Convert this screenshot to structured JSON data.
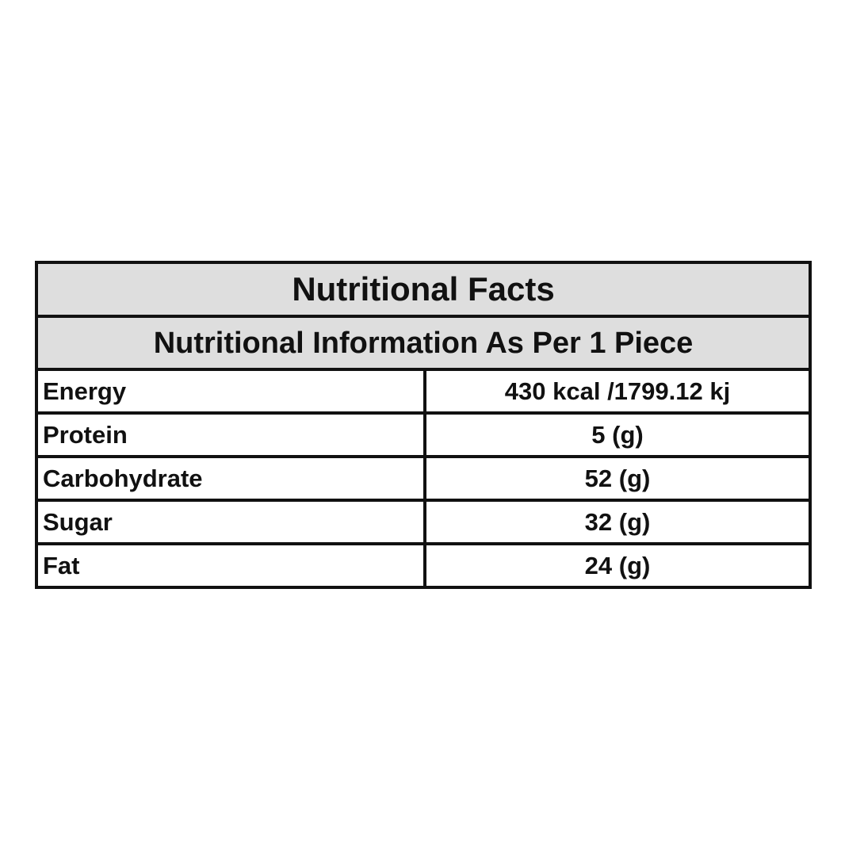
{
  "table": {
    "title": "Nutritional Facts",
    "subtitle": "Nutritional Information As Per 1 Piece",
    "rows": [
      {
        "label": "Energy",
        "value": "430 kcal /1799.12 kj"
      },
      {
        "label": "Protein",
        "value": "5 (g)"
      },
      {
        "label": "Carbohydrate",
        "value": "52 (g)"
      },
      {
        "label": "Sugar",
        "value": "32 (g)"
      },
      {
        "label": "Fat",
        "value": "24 (g)"
      }
    ]
  },
  "colors": {
    "header_background": "#dedede",
    "border": "#111111",
    "text": "#111111",
    "background": "#ffffff"
  }
}
